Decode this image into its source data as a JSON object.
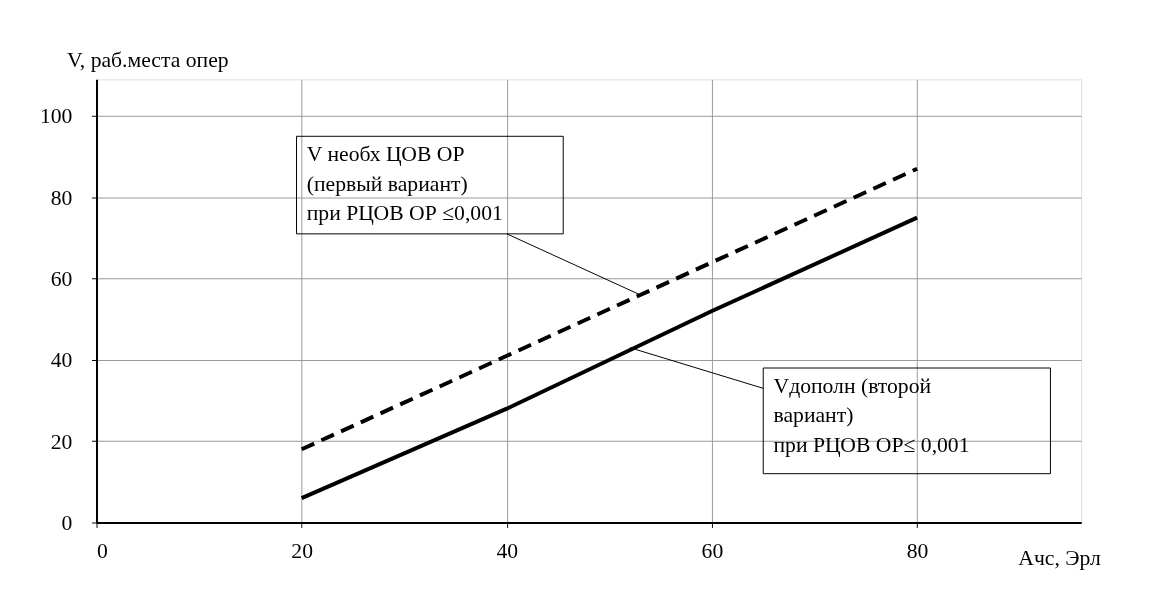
{
  "chart_data": {
    "type": "line",
    "xlabel": "Ачс, Эрл",
    "ylabel": "V, раб.места опер",
    "x": [
      20,
      40,
      60,
      80
    ],
    "series": [
      {
        "color": "#000000",
        "line_style": "dashed",
        "values": [
          18,
          41,
          64,
          87
        ]
      },
      {
        "color": "#000000",
        "line_style": "solid",
        "values": [
          6,
          28,
          52,
          75
        ]
      }
    ],
    "xlim": [
      0,
      96
    ],
    "ylim": [
      0,
      109
    ],
    "xticks": [
      0,
      20,
      40,
      60,
      80
    ],
    "yticks": [
      0,
      20,
      40,
      60,
      80,
      100
    ],
    "grid": true,
    "marker": "none",
    "annotations": [
      {
        "text": "V необх ЦОВ ОР\n(первый вариант)\nпри PЦОВ ОР ≤0,001",
        "x": 53,
        "y": 56
      },
      {
        "text": "Vдополн (второй\nвариант)\nпри PЦОВ ОР≤ 0,001",
        "x": 52,
        "y": 43
      }
    ]
  }
}
